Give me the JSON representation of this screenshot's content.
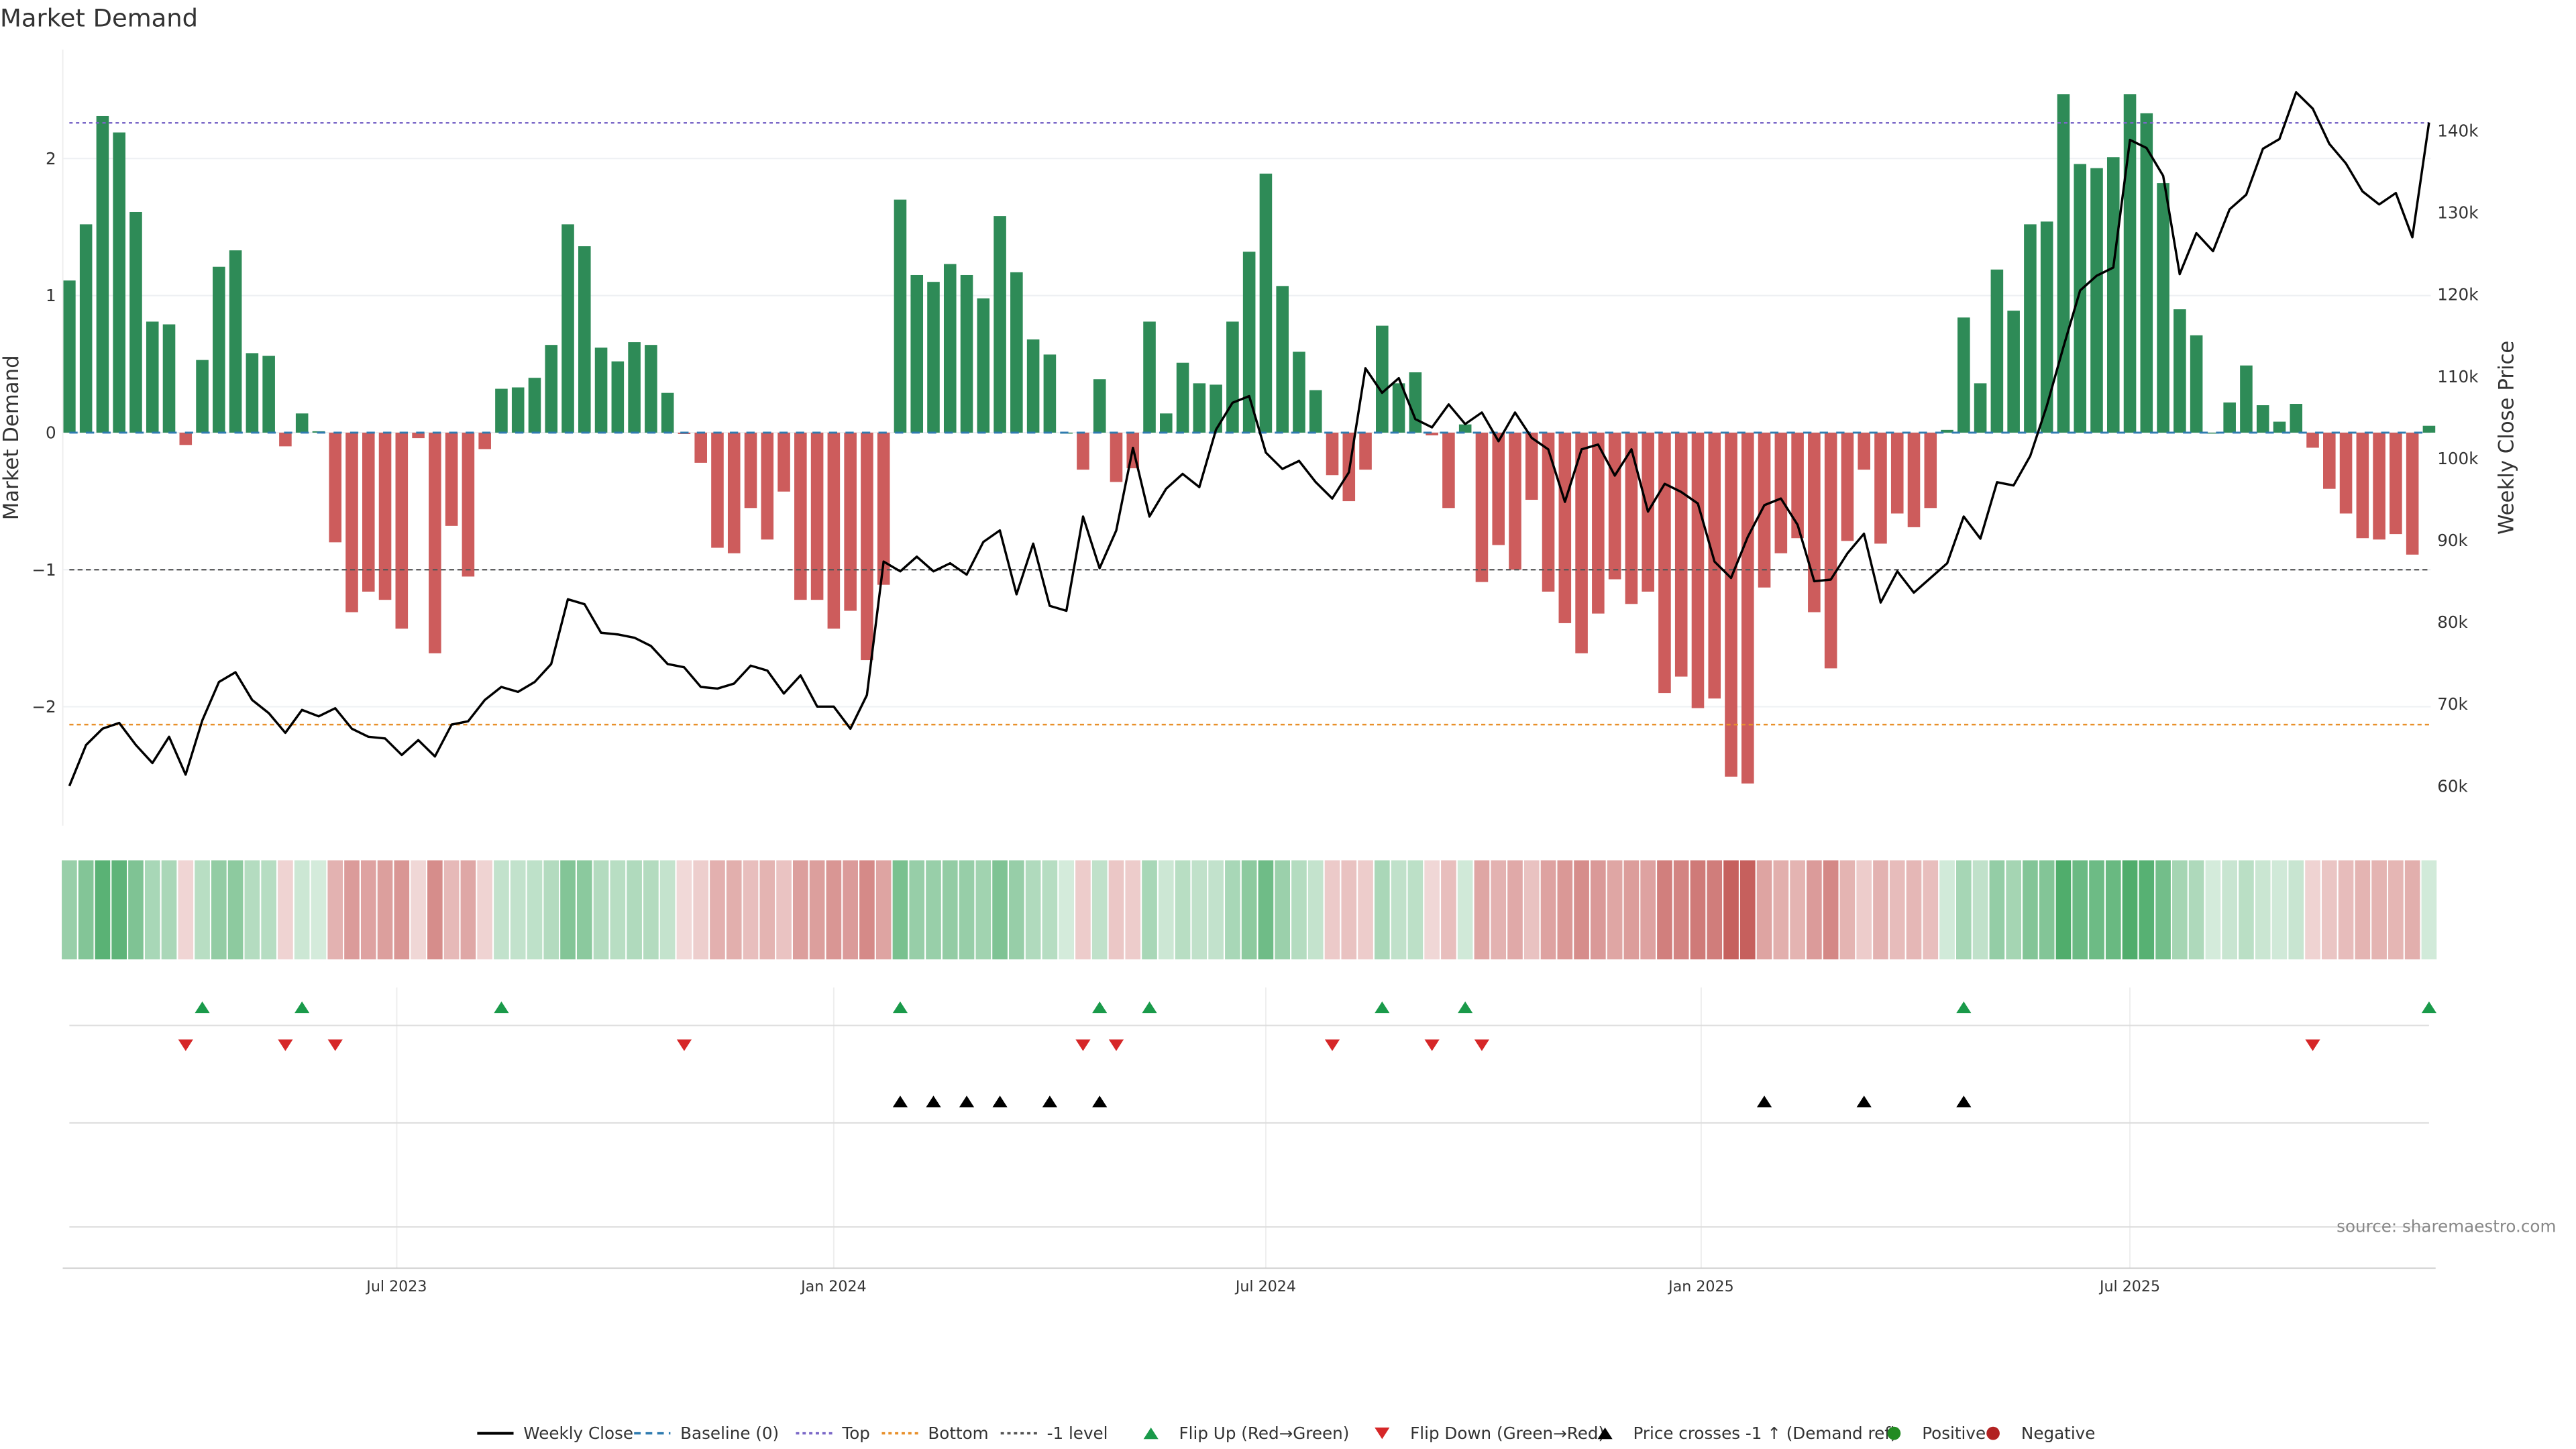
{
  "chart_data": {
    "type": "bar",
    "title": "Market Demand",
    "ylabel": "Market Demand",
    "y2label": "Weekly Close Price",
    "ylim": [
      -2.85,
      2.75
    ],
    "y2lim": [
      55,
      148
    ],
    "yticks": [
      {
        "v": 2,
        "label": "2"
      },
      {
        "v": 1,
        "label": "1"
      },
      {
        "v": 0,
        "label": "0"
      },
      {
        "v": -1,
        "label": "−1"
      },
      {
        "v": -2,
        "label": "−2"
      }
    ],
    "y2ticks": [
      {
        "v": 140,
        "label": "140k"
      },
      {
        "v": 130,
        "label": "130k"
      },
      {
        "v": 120,
        "label": "120k"
      },
      {
        "v": 110,
        "label": "110k"
      },
      {
        "v": 100,
        "label": "100k"
      },
      {
        "v": 90,
        "label": "90k"
      },
      {
        "v": 80,
        "label": "80k"
      },
      {
        "v": 70,
        "label": "70k"
      },
      {
        "v": 60,
        "label": "60k"
      }
    ],
    "xticks": [
      {
        "week": 19.7,
        "label": "Jul 2023"
      },
      {
        "week": 46,
        "label": "Jan 2024"
      },
      {
        "week": 72,
        "label": "Jul 2024"
      },
      {
        "week": 98.2,
        "label": "Jan 2025"
      },
      {
        "week": 124,
        "label": "Jul 2025"
      }
    ],
    "levels": {
      "top": 2.26,
      "bottom": -2.13,
      "minus_one": -1,
      "baseline": 0
    },
    "demand": [
      1.11,
      1.52,
      2.31,
      2.19,
      1.61,
      0.81,
      0.79,
      -0.09,
      0.53,
      1.21,
      1.33,
      0.58,
      0.56,
      -0.1,
      0.14,
      0.01,
      -0.8,
      -1.31,
      -1.16,
      -1.22,
      -1.43,
      -0.04,
      -1.61,
      -0.68,
      -1.05,
      -0.12,
      0.32,
      0.33,
      0.4,
      0.64,
      1.52,
      1.36,
      0.62,
      0.52,
      0.66,
      0.64,
      0.29,
      -0.01,
      -0.22,
      -0.84,
      -0.88,
      -0.55,
      -0.78,
      -0.43,
      -1.22,
      -1.22,
      -1.43,
      -1.3,
      -1.66,
      -1.11,
      1.7,
      1.15,
      1.1,
      1.23,
      1.15,
      0.98,
      1.58,
      1.17,
      0.68,
      0.57,
      0.0,
      -0.27,
      0.39,
      -0.36,
      -0.26,
      0.81,
      0.14,
      0.51,
      0.36,
      0.35,
      0.81,
      1.32,
      1.89,
      1.07,
      0.59,
      0.31,
      -0.31,
      -0.5,
      -0.27,
      0.78,
      0.36,
      0.44,
      -0.02,
      -0.55,
      0.06,
      -1.09,
      -0.82,
      -1.0,
      -0.49,
      -1.16,
      -1.39,
      -1.61,
      -1.32,
      -1.07,
      -1.25,
      -1.16,
      -1.9,
      -1.78,
      -2.01,
      -1.94,
      -2.51,
      -2.56,
      -1.13,
      -0.88,
      -0.77,
      -1.31,
      -1.72,
      -0.79,
      -0.27,
      -0.81,
      -0.59,
      -0.69,
      -0.55,
      0.02,
      0.84,
      0.36,
      1.19,
      0.89,
      1.52,
      1.54,
      2.47,
      1.96,
      1.93,
      2.01,
      2.47,
      2.33,
      1.82,
      0.9,
      0.71,
      0.0,
      0.22,
      0.49,
      0.2,
      0.08,
      0.21,
      -0.11,
      -0.41,
      -0.59,
      -0.77,
      -0.78,
      -0.74,
      -0.89,
      0.05
    ],
    "weekly_close_k": [
      60.0,
      65,
      67,
      67.7,
      65,
      62.8,
      66,
      61.4,
      68,
      72.7,
      73.9,
      70.5,
      68.9,
      66.5,
      69.3,
      68.5,
      69.5,
      67,
      66,
      65.8,
      63.8,
      65.6,
      63.6,
      67.5,
      67.9,
      70.5,
      72.1,
      71.5,
      72.7,
      74.9,
      82.8,
      82.2,
      78.7,
      78.5,
      78.1,
      77.1,
      74.9,
      74.5,
      72.1,
      71.9,
      72.5,
      74.7,
      74.1,
      71.3,
      73.5,
      69.7,
      69.7,
      67,
      71.1,
      87.4,
      86.2,
      88,
      86.2,
      87.2,
      85.8,
      89.8,
      91.2,
      83.4,
      89.6,
      82,
      81.4,
      92.9,
      86.6,
      91.2,
      101.3,
      92.9,
      96.3,
      98.1,
      96.5,
      103.5,
      106.8,
      107.6,
      100.7,
      98.7,
      99.7,
      97.1,
      95.1,
      98.3,
      111,
      108,
      109.8,
      104.8,
      103.8,
      106.6,
      104.2,
      105.6,
      102.1,
      105.6,
      102.5,
      101.1,
      94.7,
      101.1,
      101.7,
      97.9,
      101.1,
      93.5,
      96.9,
      95.9,
      94.5,
      87.4,
      85.4,
      90.4,
      94.3,
      95.1,
      91.9,
      85,
      85.2,
      88.4,
      90.8,
      82.4,
      86.2,
      83.6,
      85.4,
      87.2,
      92.9,
      90.2,
      97.1,
      96.7,
      100.3,
      106.4,
      113.6,
      120.5,
      122.3,
      123.3,
      138.9,
      137.9,
      134.5,
      122.5,
      127.5,
      125.3,
      130.4,
      132.2,
      137.8,
      139,
      144.7,
      142.7,
      138.4,
      136,
      132.6,
      131,
      132.4,
      127,
      141
    ],
    "flip_up_weeks": [
      8,
      14,
      26,
      50,
      62,
      65,
      79,
      84,
      114,
      142
    ],
    "flip_down_weeks": [
      7,
      13,
      16,
      37,
      61,
      63,
      76,
      82,
      85,
      135
    ],
    "price_cross_weeks": [
      50,
      52,
      54,
      56,
      59,
      62,
      102,
      108,
      114
    ],
    "legend_position": "bottom-center",
    "legend": [
      "Weekly Close",
      "Baseline (0)",
      "Top",
      "Bottom",
      "-1 level",
      "Flip Up (Red→Green)",
      "Flip Down (Green→Red)",
      "Price crosses -1 ↑ (Demand ref)",
      "Positive",
      "Negative"
    ],
    "source": "source: sharemaestro.com",
    "colors": {
      "positive": "#2e8b57",
      "negative": "#cd5c5c",
      "top": "#7b68c8",
      "bottom": "#e8902a",
      "minus_one": "#555555",
      "baseline": "#2f7bb0",
      "flip_up": "#1a9a4a",
      "flip_down": "#d62728",
      "cross": "#000000",
      "legend_pos": "#228b22",
      "legend_neg": "#b22222"
    }
  }
}
